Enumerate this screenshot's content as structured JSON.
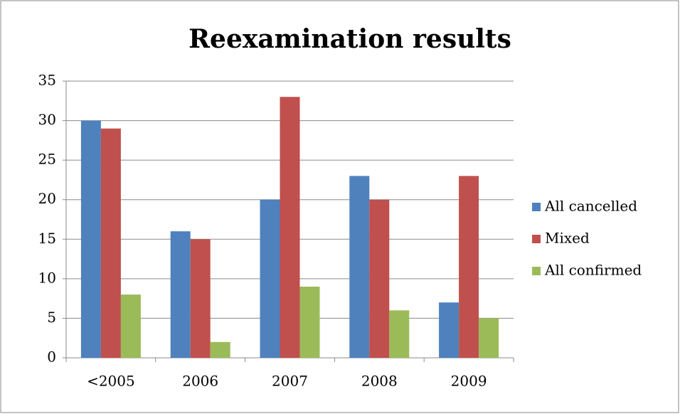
{
  "chart_data": {
    "type": "bar",
    "title": "Reexamination results",
    "categories": [
      "<2005",
      "2006",
      "2007",
      "2008",
      "2009"
    ],
    "series": [
      {
        "name": "All cancelled",
        "color": "#4f81bd",
        "values": [
          30,
          16,
          20,
          23,
          7
        ]
      },
      {
        "name": "Mixed",
        "color": "#c0504d",
        "values": [
          29,
          15,
          33,
          20,
          23
        ]
      },
      {
        "name": "All confirmed",
        "color": "#9bbb59",
        "values": [
          8,
          2,
          9,
          6,
          5
        ]
      }
    ],
    "ylim": [
      0,
      35
    ],
    "yticks": [
      0,
      5,
      10,
      15,
      20,
      25,
      30,
      35
    ],
    "grid": true,
    "legend": "right"
  }
}
